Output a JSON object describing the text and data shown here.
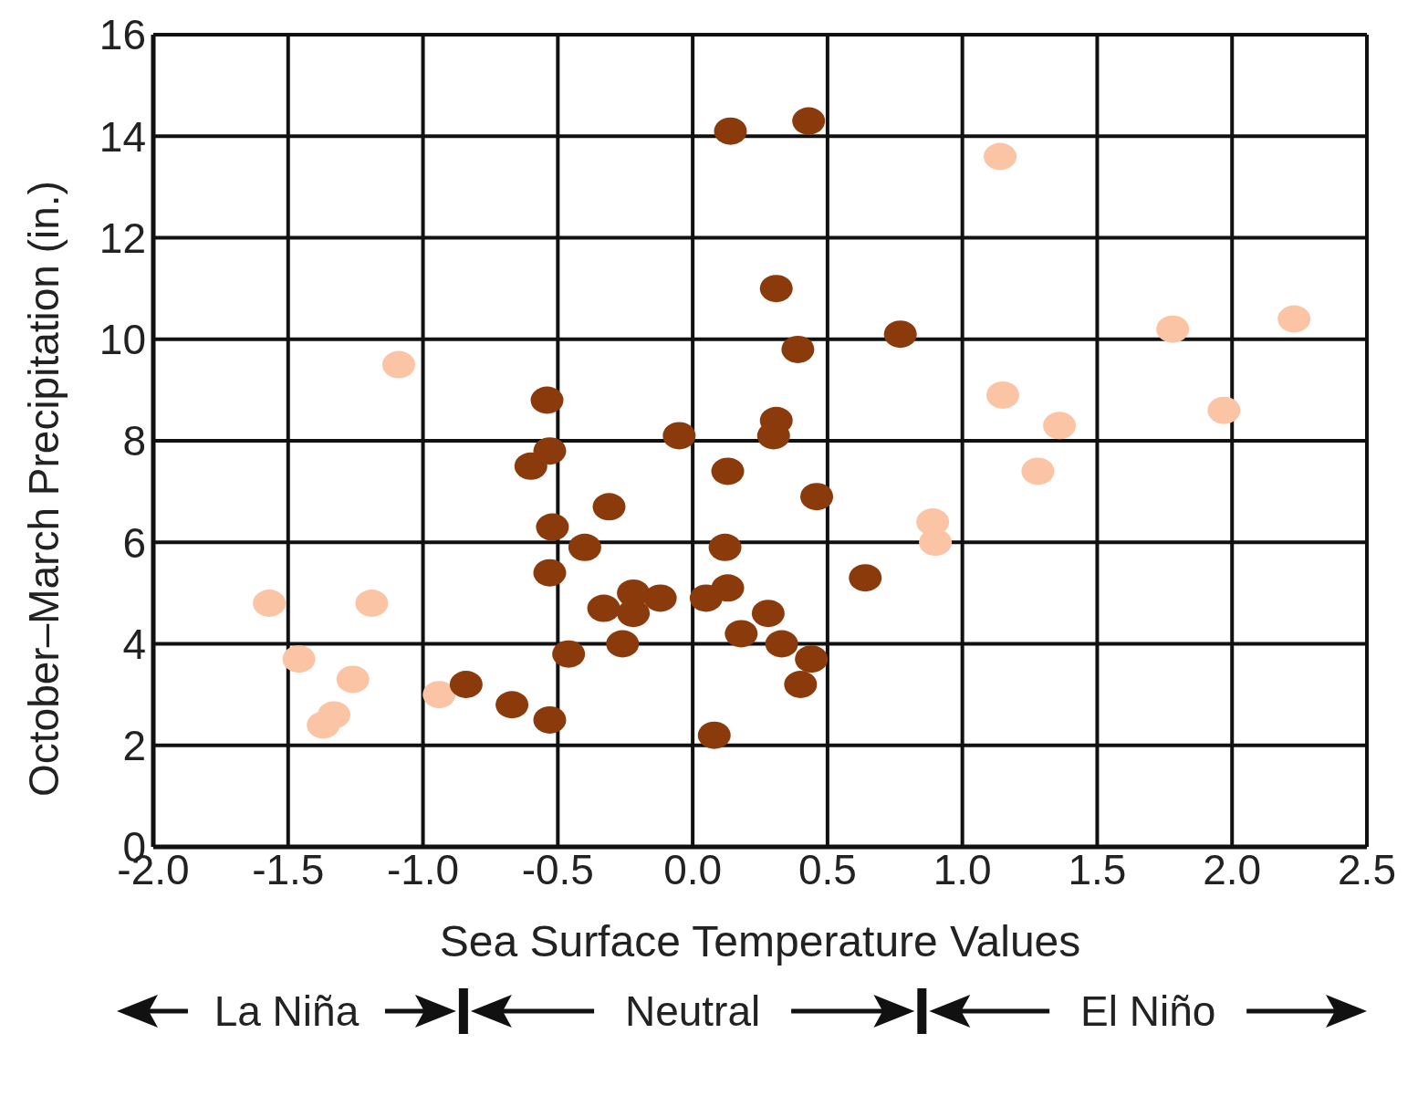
{
  "chart_data": {
    "type": "scatter",
    "xlabel": "Sea Surface Temperature Values",
    "ylabel": "October–March Precipitation (in.)",
    "xlim": [
      -2,
      2.5
    ],
    "xticks": [
      {
        "value": -2,
        "label": "-2.0"
      },
      {
        "value": -1.5,
        "label": "-1.5"
      },
      {
        "value": -1,
        "label": "-1.0"
      },
      {
        "value": -0.5,
        "label": "-0.5"
      },
      {
        "value": 0,
        "label": "0.0"
      },
      {
        "value": 0.5,
        "label": "0.5"
      },
      {
        "value": 1,
        "label": "1.0"
      },
      {
        "value": 1.5,
        "label": "1.5"
      },
      {
        "value": 2,
        "label": "2.0"
      },
      {
        "value": 2.5,
        "label": "2.5"
      }
    ],
    "ylim": [
      0,
      16
    ],
    "yticks": [
      0,
      2,
      4,
      6,
      8,
      10,
      12,
      14,
      16
    ],
    "grid": true,
    "legend": false,
    "marker": "circle",
    "series": [
      {
        "color": "#fbc5a5",
        "x": [
          -1.57,
          -1.46,
          -1.19,
          -1.09,
          -1.26,
          -1.37,
          -1.33,
          -0.94,
          1.14,
          1.15,
          1.36,
          1.28,
          0.89,
          0.9,
          1.78,
          2.23,
          1.97
        ],
        "values": [
          4.8,
          3.7,
          4.8,
          9.5,
          3.3,
          2.4,
          2.6,
          3.0,
          13.6,
          8.9,
          8.3,
          7.4,
          6.4,
          6.0,
          10.2,
          10.4,
          8.6
        ]
      },
      {
        "color": "#8b3a0b",
        "x": [
          -0.84,
          -0.67,
          -0.53,
          -0.54,
          -0.53,
          -0.6,
          -0.52,
          -0.53,
          -0.46,
          -0.4,
          -0.31,
          -0.33,
          -0.26,
          -0.22,
          -0.22,
          -0.12,
          -0.05,
          0.05,
          0.08,
          0.14,
          0.43,
          0.31,
          0.39,
          0.31,
          0.3,
          0.13,
          0.46,
          0.12,
          0.13,
          0.18,
          0.28,
          0.33,
          0.44,
          0.4,
          0.64,
          0.77
        ],
        "values": [
          3.2,
          2.8,
          2.5,
          8.8,
          7.8,
          7.5,
          6.3,
          5.4,
          3.8,
          5.9,
          6.7,
          4.7,
          4.0,
          5.0,
          4.6,
          4.9,
          8.1,
          4.9,
          2.2,
          14.1,
          14.3,
          11.0,
          9.8,
          8.4,
          8.1,
          7.4,
          6.9,
          5.9,
          5.1,
          4.2,
          4.6,
          4.0,
          3.7,
          3.2,
          5.3,
          10.1
        ]
      }
    ],
    "annotations": [
      "La Niña",
      "Neutral",
      "El Niño"
    ]
  }
}
